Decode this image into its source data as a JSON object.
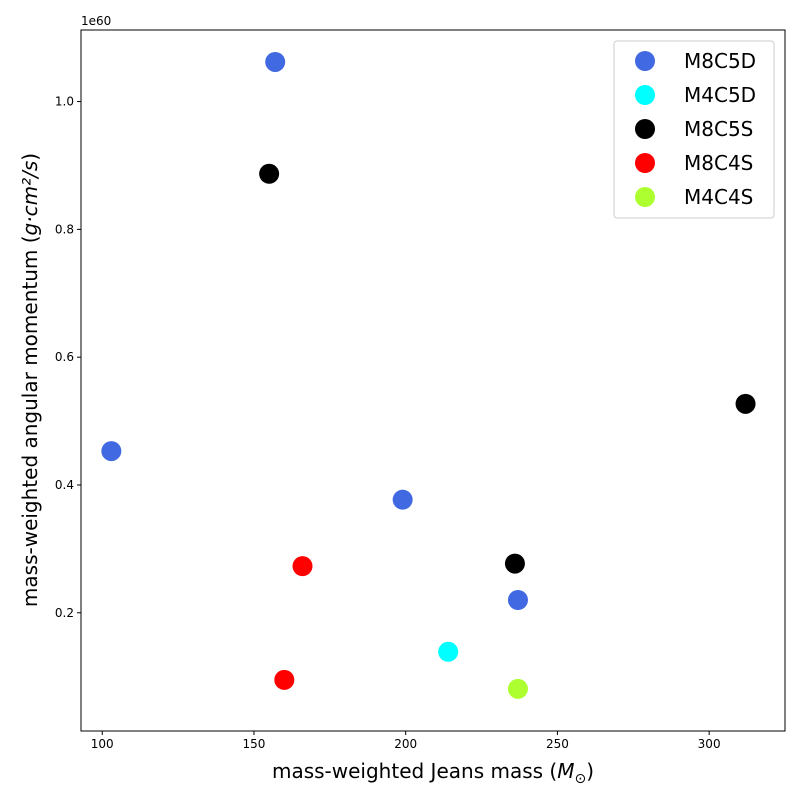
{
  "chart_data": {
    "type": "scatter",
    "title": "",
    "xlabel": "mass-weighted Jeans mass",
    "xlabel_unit_symbol": "M",
    "ylabel": "mass-weighted angular momentum",
    "ylabel_unit": "g·cm²/s",
    "y_offset_text": "1e60",
    "xlim": [
      93,
      325
    ],
    "ylim": [
      0.015,
      1.112
    ],
    "xticks": [
      100,
      150,
      200,
      250,
      300
    ],
    "xtick_labels": [
      "100",
      "150",
      "200",
      "250",
      "300"
    ],
    "yticks": [
      0.2,
      0.4,
      0.6,
      0.8,
      1.0
    ],
    "ytick_labels": [
      "0.2",
      "0.4",
      "0.6",
      "0.8",
      "1.0"
    ],
    "grid": false,
    "legend_position": "top-right",
    "series": [
      {
        "name": "M8C5D",
        "color": "#4169E1",
        "points": [
          [
            157,
            1.062
          ],
          [
            103,
            0.453
          ],
          [
            199,
            0.377
          ],
          [
            237,
            0.22
          ]
        ]
      },
      {
        "name": "M4C5D",
        "color": "#00FFFF",
        "points": [
          [
            214,
            0.139
          ]
        ]
      },
      {
        "name": "M8C5S",
        "color": "#000000",
        "points": [
          [
            155,
            0.887
          ],
          [
            312,
            0.527
          ],
          [
            236,
            0.277
          ]
        ]
      },
      {
        "name": "M8C4S",
        "color": "#FF0000",
        "points": [
          [
            166,
            0.273
          ],
          [
            160,
            0.095
          ]
        ]
      },
      {
        "name": "M4C4S",
        "color": "#ADFF2F",
        "points": [
          [
            237,
            0.081
          ]
        ]
      }
    ]
  }
}
